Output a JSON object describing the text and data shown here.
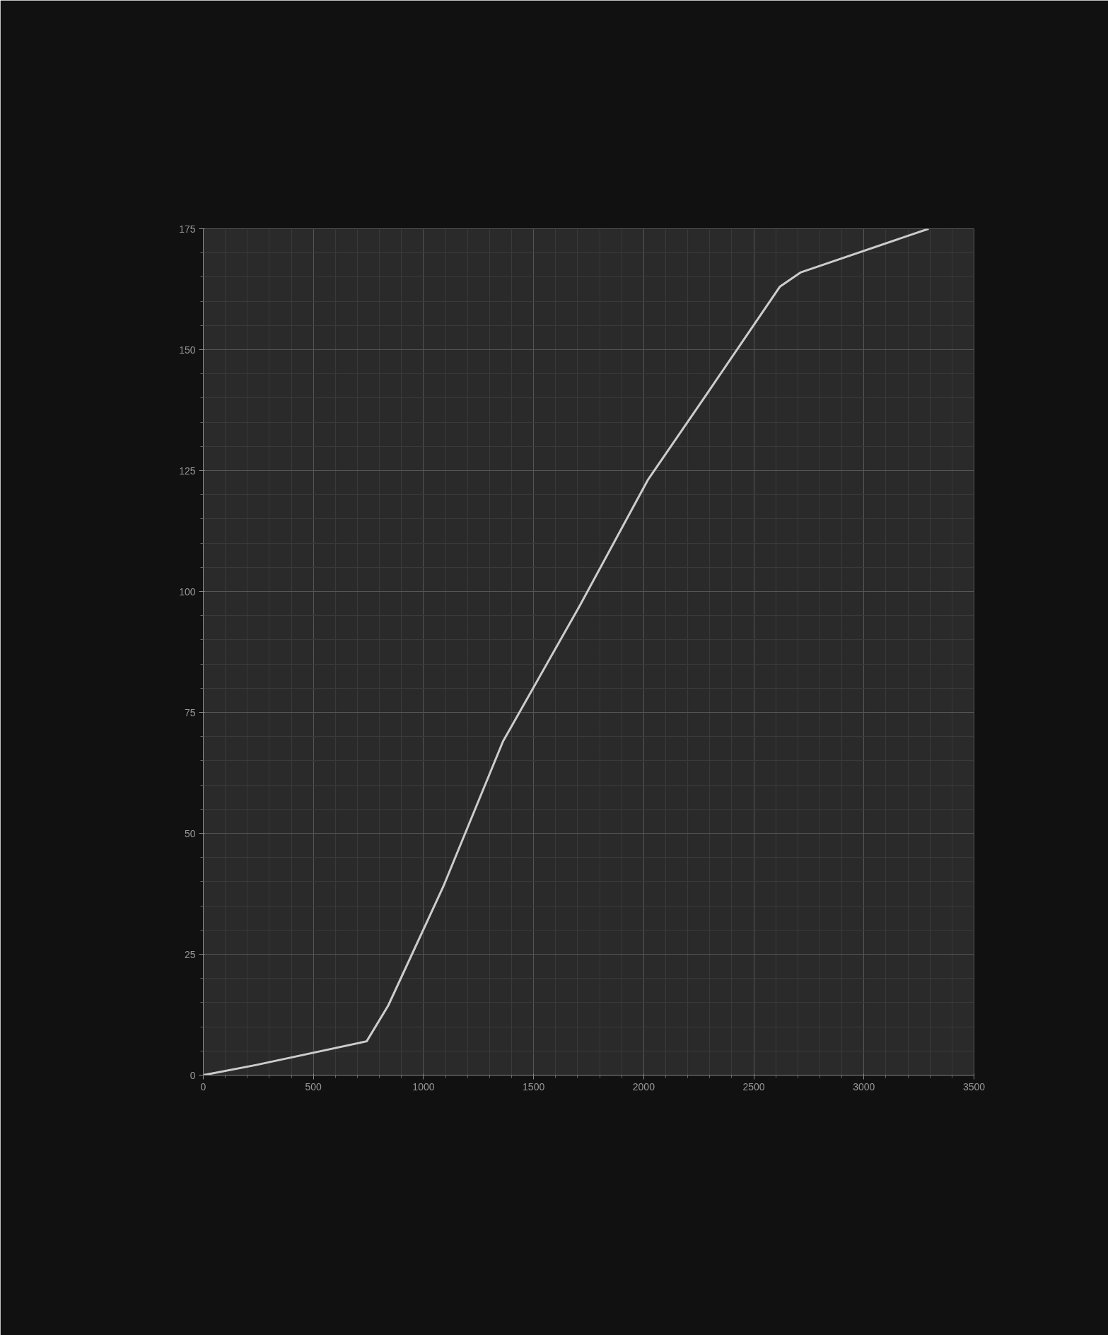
{
  "chart_data": {
    "type": "line",
    "x": [
      0,
      240,
      742,
      840,
      1090,
      1361,
      1709,
      2018,
      2289,
      2618,
      2714,
      3294
    ],
    "series": [
      {
        "color": "#cccccc",
        "values": [
          0,
          2.1,
          7,
          14.4,
          39,
          69,
          97,
          123,
          141,
          163,
          166,
          175
        ]
      }
    ],
    "xlim": [
      0,
      3500
    ],
    "xticks": [
      0,
      500,
      1000,
      1500,
      2000,
      2500,
      3000,
      3500
    ],
    "ylim": [
      0,
      175
    ],
    "yticks": [
      0,
      25,
      50,
      75,
      100,
      125,
      150,
      175
    ],
    "grid": true,
    "marker": "none",
    "line_style": "solid"
  }
}
